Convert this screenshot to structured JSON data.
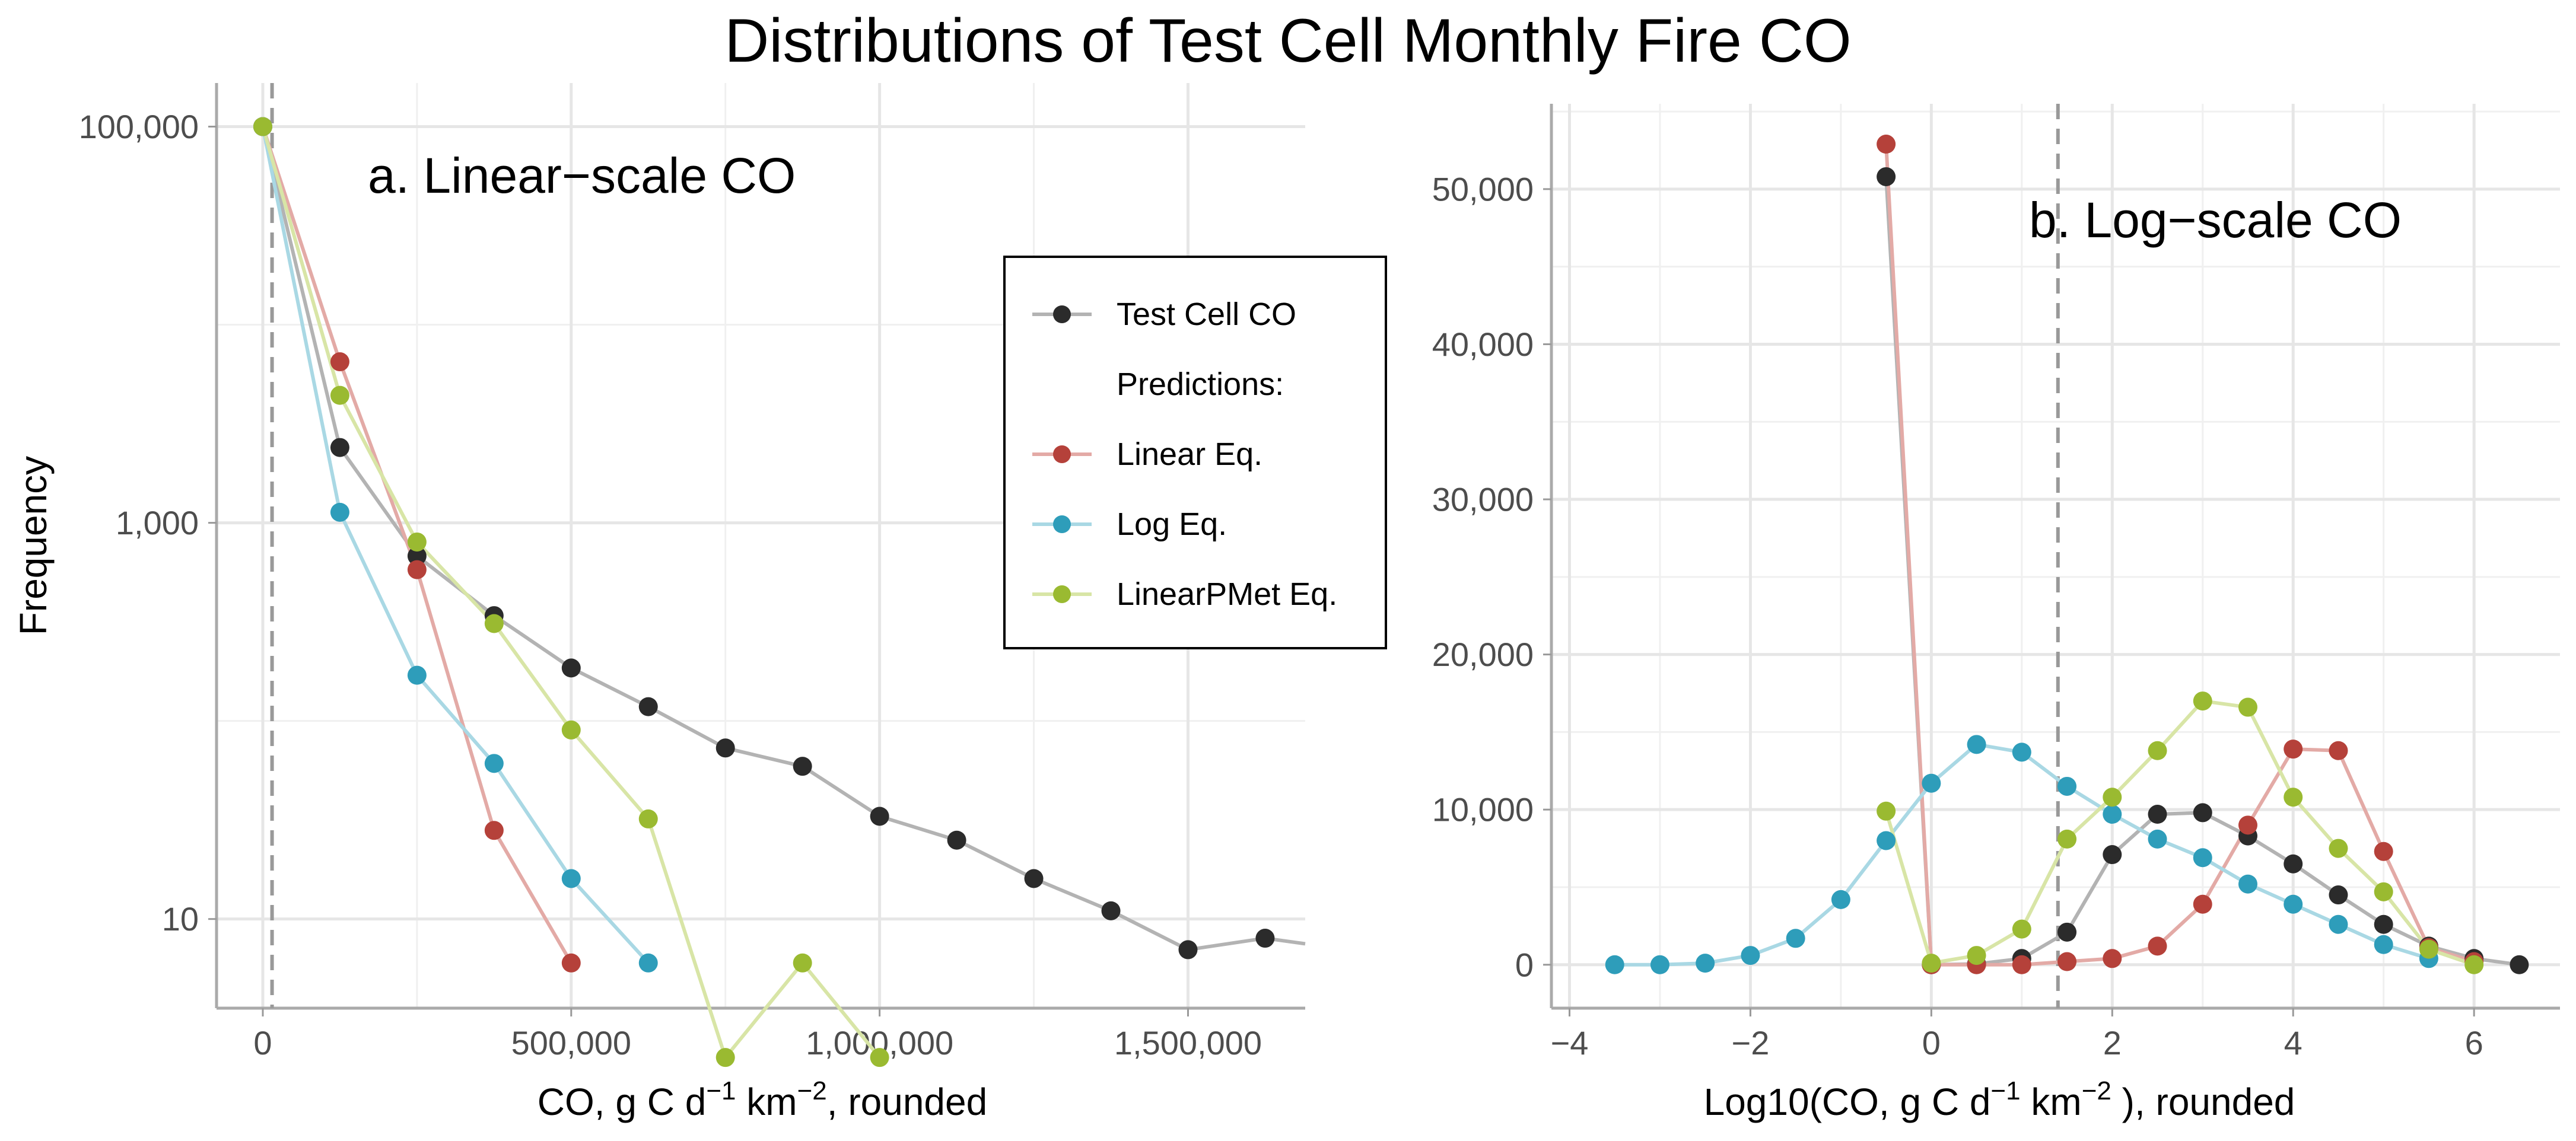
{
  "title": "Distributions of Test Cell Monthly Fire CO",
  "chart_data": [
    {
      "type": "line",
      "subtitle": "a. Linear−scale CO",
      "xlabel_main": "CO, g C  d",
      "xlabel_sup1": "−1",
      "xlabel_mid": " km",
      "xlabel_sup2": "−2",
      "xlabel_end": ", rounded",
      "ylabel": "Frequency",
      "y_scale": "log10",
      "xlim": [
        -75000,
        1690000
      ],
      "ylim_log10": [
        0.55,
        5.22
      ],
      "reference_x": 15000,
      "x_ticks": [
        0,
        500000,
        1000000,
        1500000
      ],
      "x_tick_labels": [
        "0",
        "500,000",
        "1,000,000",
        "1,500,000"
      ],
      "y_ticks": [
        10,
        1000,
        100000
      ],
      "y_tick_labels": [
        "10",
        "1,000",
        "100,000"
      ],
      "legend_position": "top-right",
      "series": [
        {
          "name": "Test Cell CO",
          "color": "#2b2b2b",
          "line_color": "#b3b3b3",
          "x": [
            0,
            125000,
            250000,
            375000,
            500000,
            625000,
            750000,
            875000,
            1000000,
            1125000,
            1250000,
            1375000,
            1500000,
            1625000,
            1690000
          ],
          "y": [
            100000,
            2400,
            680,
            340,
            185,
            118,
            73,
            59,
            33,
            25,
            16,
            11,
            7,
            8,
            7.5
          ]
        },
        {
          "name": "Linear Eq.",
          "color": "#b5413a",
          "line_color": "#e3aaa6",
          "x": [
            0,
            125000,
            250000,
            375000,
            500000
          ],
          "y": [
            100000,
            6500,
            580,
            28,
            6
          ]
        },
        {
          "name": "Log Eq.",
          "color": "#2e9dba",
          "line_color": "#a9d8e4",
          "x": [
            0,
            125000,
            250000,
            375000,
            500000,
            625000
          ],
          "y": [
            100000,
            1130,
            170,
            61,
            16,
            6
          ]
        },
        {
          "name": "LinearPMet Eq.",
          "color": "#9aba31",
          "line_color": "#d8e5a6",
          "x": [
            0,
            125000,
            250000,
            375000,
            500000,
            625000,
            750000,
            875000,
            1000000
          ],
          "y": [
            100000,
            4400,
            800,
            310,
            90,
            32,
            2,
            6,
            2
          ]
        }
      ]
    },
    {
      "type": "line",
      "subtitle": "b. Log−scale CO",
      "xlabel_main": "Log10(CO, g C  d",
      "xlabel_sup1": "−1",
      "xlabel_mid": " km",
      "xlabel_sup2": "−2",
      "xlabel_end": " ), rounded",
      "xlim": [
        -4.2,
        6.95
      ],
      "ylim": [
        -2800,
        55500
      ],
      "reference_x": 1.4,
      "x_ticks": [
        -4,
        -2,
        0,
        2,
        4,
        6
      ],
      "x_tick_labels": [
        "−4",
        "−2",
        "0",
        "2",
        "4",
        "6"
      ],
      "y_ticks": [
        0,
        10000,
        20000,
        30000,
        40000,
        50000
      ],
      "y_tick_labels": [
        "0",
        "10,000",
        "20,000",
        "30,000",
        "40,000",
        "50,000"
      ],
      "series": [
        {
          "name": "Test Cell CO",
          "color": "#2b2b2b",
          "line_color": "#b3b3b3",
          "x": [
            -0.5,
            0,
            0.5,
            1,
            1.5,
            2,
            2.5,
            3,
            3.5,
            4,
            4.5,
            5,
            5.5,
            6,
            6.5
          ],
          "y": [
            50800,
            0,
            50,
            400,
            2100,
            7100,
            9700,
            9800,
            8300,
            6500,
            4500,
            2600,
            1200,
            400,
            0
          ]
        },
        {
          "name": "Linear Eq.",
          "color": "#b5413a",
          "line_color": "#e3aaa6",
          "x": [
            -0.5,
            0,
            0.5,
            1,
            1.5,
            2,
            2.5,
            3,
            3.5,
            4,
            4.5,
            5,
            5.5,
            6
          ],
          "y": [
            52900,
            0,
            0,
            0,
            200,
            400,
            1200,
            3900,
            9000,
            13900,
            13800,
            7300,
            1100,
            200
          ]
        },
        {
          "name": "Log Eq.",
          "color": "#2e9dba",
          "line_color": "#a9d8e4",
          "x": [
            -3.5,
            -3,
            -2.5,
            -2,
            -1.5,
            -1,
            -0.5,
            0,
            0.5,
            1,
            1.5,
            2,
            2.5,
            3,
            3.5,
            4,
            4.5,
            5,
            5.5
          ],
          "y": [
            0,
            0,
            100,
            600,
            1700,
            4200,
            8000,
            11700,
            14200,
            13700,
            11500,
            9700,
            8100,
            6900,
            5200,
            3900,
            2600,
            1300,
            400
          ]
        },
        {
          "name": "LinearPMet Eq.",
          "color": "#9aba31",
          "line_color": "#d8e5a6",
          "x": [
            -0.5,
            0,
            0.5,
            1,
            1.5,
            2,
            2.5,
            3,
            3.5,
            4,
            4.5,
            5,
            5.5,
            6
          ],
          "y": [
            9900,
            100,
            600,
            2300,
            8100,
            10800,
            13800,
            17000,
            16600,
            10800,
            7500,
            4700,
            1000,
            0
          ]
        }
      ]
    }
  ],
  "legend": {
    "items": [
      {
        "label": "Test Cell CO",
        "color": "#2b2b2b",
        "line_color": "#b3b3b3"
      },
      {
        "label": "Predictions:",
        "color": "",
        "line_color": ""
      },
      {
        "label": "Linear Eq.",
        "color": "#b5413a",
        "line_color": "#e3aaa6"
      },
      {
        "label": "Log Eq.",
        "color": "#2e9dba",
        "line_color": "#a9d8e4"
      },
      {
        "label": "LinearPMet Eq.",
        "color": "#9aba31",
        "line_color": "#d8e5a6"
      }
    ]
  }
}
